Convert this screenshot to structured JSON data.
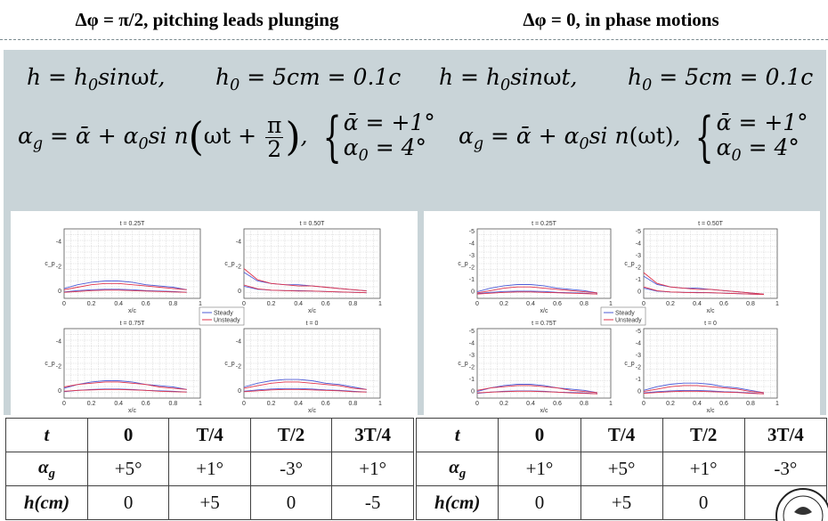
{
  "headers": {
    "left": "Δφ = π/2, pitching leads plunging",
    "right": "Δφ = 0, in phase motions"
  },
  "formulas": {
    "plunge": "h = h0 sinωt",
    "amplitude": "h0 = 5cm = 0.1c",
    "pitch_left": "αg = ᾱ + α0 sin(ωt + π/2)",
    "pitch_right": "αg = ᾱ + α0 sin(ωt)",
    "mean_aoa": "ᾱ = +1°",
    "pitch_amp": "α0 = 4°"
  },
  "plots": {
    "left_titles": [
      "t = 0.25T",
      "t = 0.50T",
      "t = 0.75T",
      "t = 0"
    ],
    "right_titles": [
      "t = 0.25T",
      "t = 0.50T",
      "t = 0.75T",
      "t = 0"
    ],
    "xlabel": "x/c",
    "ylabel": "c_p",
    "x_ticks": [
      "0",
      "0.2",
      "0.4",
      "0.6",
      "0.8",
      "1"
    ],
    "left_y_ticks": [
      "-4",
      "-2",
      "0"
    ],
    "right_y_ticks": [
      "-5",
      "-4",
      "-3",
      "-2",
      "-1",
      "0"
    ],
    "legend": [
      "Steady",
      "Unsteady"
    ],
    "colors": {
      "steady": "#4d5bd6",
      "unsteady": "#e0324a",
      "unsteady2": "#8a3d9a"
    }
  },
  "chart_data": [
    {
      "type": "line",
      "title": "t = 0.25T",
      "xlabel": "x/c",
      "ylabel": "c_p",
      "xlim": [
        0,
        1
      ],
      "ylim": [
        1,
        -5
      ],
      "x": [
        0,
        0.1,
        0.2,
        0.3,
        0.4,
        0.5,
        0.6,
        0.7,
        0.8,
        0.9
      ],
      "series": [
        {
          "name": "Steady",
          "values": [
            -0.2,
            -0.5,
            -0.7,
            -0.8,
            -0.8,
            -0.7,
            -0.5,
            -0.4,
            -0.3,
            -0.1
          ]
        },
        {
          "name": "Unsteady",
          "values": [
            -0.1,
            -0.3,
            -0.5,
            -0.6,
            -0.6,
            -0.5,
            -0.4,
            -0.3,
            -0.2,
            -0.1
          ]
        }
      ]
    },
    {
      "type": "line",
      "title": "t = 0.50T",
      "xlabel": "x/c",
      "ylabel": "c_p",
      "xlim": [
        0,
        1
      ],
      "ylim": [
        1,
        -5
      ],
      "x": [
        0,
        0.1,
        0.2,
        0.3,
        0.4,
        0.5,
        0.6,
        0.7,
        0.8,
        0.9
      ],
      "series": [
        {
          "name": "Steady",
          "values": [
            -1.5,
            -0.8,
            -0.6,
            -0.5,
            -0.5,
            -0.4,
            -0.3,
            -0.2,
            -0.1,
            0.0
          ]
        },
        {
          "name": "Unsteady",
          "values": [
            -1.8,
            -0.9,
            -0.6,
            -0.5,
            -0.4,
            -0.4,
            -0.3,
            -0.2,
            -0.1,
            0.0
          ]
        }
      ]
    },
    {
      "type": "line",
      "title": "t = 0.75T",
      "xlabel": "x/c",
      "ylabel": "c_p",
      "xlim": [
        0,
        1
      ],
      "ylim": [
        1,
        -5
      ],
      "x": [
        0,
        0.1,
        0.2,
        0.3,
        0.4,
        0.5,
        0.6,
        0.7,
        0.8,
        0.9
      ],
      "series": [
        {
          "name": "Steady",
          "values": [
            -0.2,
            -0.5,
            -0.7,
            -0.8,
            -0.8,
            -0.7,
            -0.5,
            -0.4,
            -0.3,
            -0.1
          ]
        },
        {
          "name": "Unsteady",
          "values": [
            -0.3,
            -0.5,
            -0.6,
            -0.7,
            -0.7,
            -0.6,
            -0.5,
            -0.3,
            -0.2,
            -0.1
          ]
        }
      ]
    },
    {
      "type": "line",
      "title": "t = 0",
      "xlabel": "x/c",
      "ylabel": "c_p",
      "xlim": [
        0,
        1
      ],
      "ylim": [
        1,
        -5
      ],
      "x": [
        0,
        0.1,
        0.2,
        0.3,
        0.4,
        0.5,
        0.6,
        0.7,
        0.8,
        0.9
      ],
      "series": [
        {
          "name": "Steady",
          "values": [
            -0.3,
            -0.6,
            -0.8,
            -0.9,
            -0.9,
            -0.8,
            -0.6,
            -0.5,
            -0.3,
            -0.1
          ]
        },
        {
          "name": "Unsteady",
          "values": [
            -0.2,
            -0.4,
            -0.6,
            -0.7,
            -0.7,
            -0.6,
            -0.5,
            -0.4,
            -0.2,
            -0.1
          ]
        }
      ]
    }
  ],
  "table_left": {
    "header": [
      "t",
      "0",
      "T/4",
      "T/2",
      "3T/4"
    ],
    "alpha_label": "αg",
    "alpha": [
      "+5°",
      "+1°",
      "-3°",
      "+1°"
    ],
    "h_label": "h(cm)",
    "h": [
      "0",
      "+5",
      "0",
      "-5"
    ]
  },
  "table_right": {
    "header": [
      "t",
      "0",
      "T/4",
      "T/2",
      "3T/4"
    ],
    "alpha_label": "αg",
    "alpha": [
      "+1°",
      "+5°",
      "+1°",
      "-3°"
    ],
    "h_label": "h(cm)",
    "h": [
      "0",
      "+5",
      "0",
      ""
    ]
  }
}
